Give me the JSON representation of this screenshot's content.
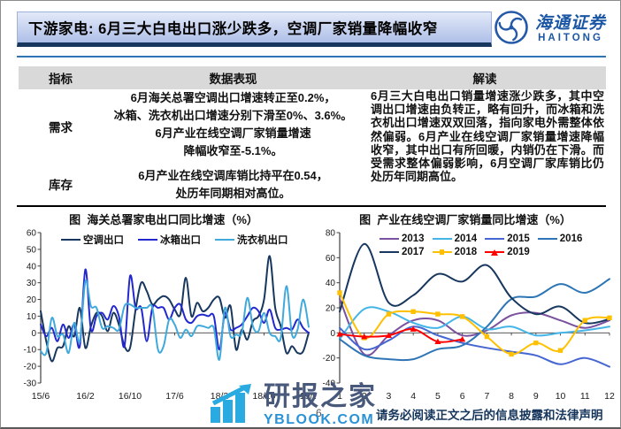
{
  "page": {
    "title": "下游家电: 6月三大白电出口涨少跌多，空调厂家销量降幅收窄",
    "page_number": "6"
  },
  "logo": {
    "cn": "海通证券",
    "en": "HAITONG"
  },
  "colors": {
    "title_bar_shadow": "#17375E",
    "header_rule": "#2E75B6",
    "table_header_bg": "#D9D9D9",
    "logo_blue": "#1C57A5",
    "watermark_blue": "#29ABE2",
    "watermark_slate": "#49597B",
    "disclaimer_navy": "#16365C"
  },
  "table": {
    "headers": [
      "指标",
      "数据表现",
      "解读"
    ],
    "rows": [
      {
        "label": "需求",
        "text": "6月海关总署空调出口增速转正至0.2%，\n冰箱、洗衣机出口增速分别下滑至0%、3.6%。\n6月产业在线空调厂家销量增速\n降幅收窄至-5.1%。"
      },
      {
        "label": "库存",
        "text": "6月产业在线空调库销比持平在0.54，\n处历年同期相对高位。"
      }
    ],
    "interpretation": "6月三大白电出口销量增速涨少跌多，其中空调出口增速由负转正，略有回升，而冰箱和洗衣机出口增速双双回落，指向家电外需整体依然偏弱。6月产业在线空调厂家销量增速降幅收窄，其中出口有所回暖，内销仍在下滑。而受需求整体偏弱影响，6月空调厂家库销比仍处历年同期高位。"
  },
  "chart_data": [
    {
      "type": "line",
      "title": "图  海关总署家电出口同比增速（%）",
      "xlabel": "",
      "ylabel": "",
      "ylim": [
        -30,
        60
      ],
      "yticks": [
        60,
        50,
        40,
        30,
        20,
        10,
        0,
        -10,
        -20,
        -30
      ],
      "n_points": 49,
      "x_tick_indices": [
        0,
        8,
        16,
        24,
        32,
        40,
        48
      ],
      "x_tick_labels": [
        "15/6",
        "16/2",
        "16/10",
        "17/6",
        "18/2",
        "18/10",
        "19/6"
      ],
      "legend_position": "top-inside",
      "grid": false,
      "series": [
        {
          "name": "空调出口",
          "color": "#17375E",
          "values": [
            13,
            -5,
            -17,
            -9,
            -8,
            4,
            -2,
            15,
            -9,
            4,
            12,
            10,
            1,
            12,
            5,
            -8,
            -9,
            14,
            30,
            25,
            17,
            20,
            22,
            20,
            14,
            11,
            33,
            10,
            18,
            13,
            15,
            20,
            21,
            9,
            16,
            -10,
            2,
            -4,
            7,
            10,
            20,
            46,
            15,
            4,
            -12,
            -8,
            -12,
            -11,
            0.2
          ]
        },
        {
          "name": "冰箱出口",
          "color": "#2328CE",
          "values": [
            5,
            -2,
            3,
            -5,
            5,
            -3,
            5,
            -8,
            38,
            2,
            10,
            12,
            8,
            16,
            10,
            -8,
            34,
            15,
            15,
            -5,
            15,
            15,
            15,
            8,
            15,
            17,
            8,
            6,
            10,
            11,
            10,
            10,
            -10,
            12,
            2,
            3,
            5,
            10,
            15,
            13,
            6,
            14,
            3,
            2,
            3,
            2,
            8,
            3,
            0
          ]
        },
        {
          "name": "洗衣机出口",
          "color": "#3FA9DC",
          "values": [
            -11,
            -12,
            9,
            -2,
            -1,
            -12,
            6,
            -5,
            31,
            16,
            15,
            3,
            4,
            3,
            2,
            16,
            17,
            15,
            15,
            15,
            15,
            -10,
            -8,
            8,
            5,
            -3,
            2,
            -2,
            4,
            4,
            3,
            3,
            -16,
            15,
            -2,
            -1,
            0,
            21,
            4,
            1,
            12,
            0,
            -2,
            -3,
            28,
            -1,
            2,
            20,
            3.6
          ]
        }
      ]
    },
    {
      "type": "line",
      "title": "图  产业在线空调厂家销量同比增速（%）",
      "xlabel": "",
      "ylabel": "",
      "ylim": [
        -40,
        80
      ],
      "yticks": [
        80,
        60,
        40,
        20,
        0,
        -20,
        -40
      ],
      "n_points": 12,
      "x_tick_indices": [
        0,
        1,
        2,
        3,
        4,
        5,
        6,
        7,
        8,
        9,
        10,
        11
      ],
      "x_tick_labels": [
        "1",
        "2",
        "3",
        "4",
        "5",
        "6",
        "7",
        "8",
        "9",
        "10",
        "11",
        "12"
      ],
      "legend_position": "top-inside",
      "grid": false,
      "series": [
        {
          "name": "2013",
          "color": "#7A52A0",
          "values": [
            27,
            -17,
            -2,
            10,
            10,
            -2,
            2,
            14,
            16,
            10,
            4,
            10
          ]
        },
        {
          "name": "2014",
          "color": "#45B5E8",
          "values": [
            -5,
            19,
            17,
            8,
            4,
            13,
            3,
            5,
            -2,
            0,
            2,
            5
          ]
        },
        {
          "name": "2015",
          "color": "#4666D1",
          "values": [
            4,
            -13,
            -6,
            5,
            -2,
            -8,
            -12,
            -15,
            -18,
            -25,
            -20,
            -27
          ]
        },
        {
          "name": "2016",
          "color": "#2E75B6",
          "values": [
            -5,
            -18,
            -21,
            -21,
            -13,
            -10,
            5,
            27,
            29,
            39,
            32,
            43
          ]
        },
        {
          "name": "2017",
          "color": "#17375E",
          "values": [
            17,
            71,
            24,
            30,
            47,
            41,
            54,
            28,
            15,
            21,
            8,
            11
          ]
        },
        {
          "name": "2018",
          "color": "#FFC000",
          "marker": "square",
          "values": [
            32,
            -4,
            15,
            17,
            15,
            13,
            -3,
            -17,
            -8,
            -14,
            10,
            12
          ]
        },
        {
          "name": "2019",
          "color": "#FF0000",
          "marker": "triangle",
          "values": [
            -1,
            -3,
            -2,
            3,
            -7,
            -5.1
          ]
        }
      ]
    }
  ],
  "watermark": {
    "name": "研报之家",
    "site": "YBLOOK.COM"
  },
  "footer": {
    "disclaimer": "请务必阅读正文之后的信息披露和法律声明"
  }
}
